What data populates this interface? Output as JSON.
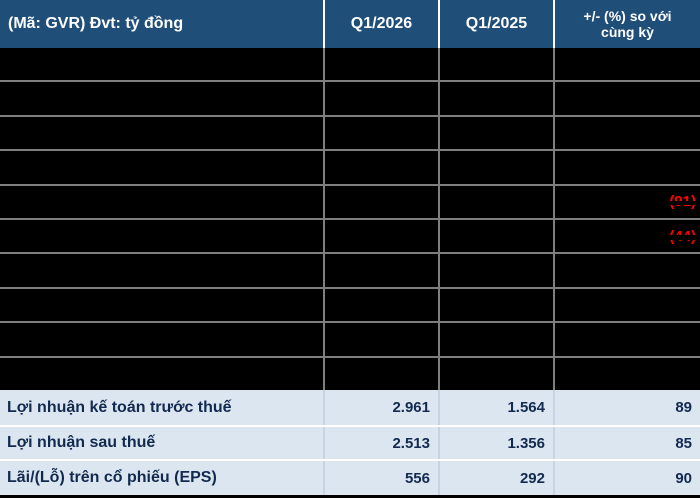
{
  "table": {
    "header": {
      "metric": "(Mã: GVR) Đvt: tỷ đồng",
      "q1_2026": "Q1/2026",
      "q1_2025": "Q1/2025",
      "change": "+/- (%) so với cùng kỳ"
    },
    "redacted_rows": [
      {
        "change": ""
      },
      {
        "change": ""
      },
      {
        "change": ""
      },
      {
        "change": ""
      },
      {
        "change": "(91)"
      },
      {
        "change": "(44)"
      },
      {
        "change": ""
      },
      {
        "change": ""
      },
      {
        "change": ""
      },
      {
        "change": ""
      }
    ],
    "visible_rows": [
      {
        "label": "Lợi nhuận kế toán trước thuế",
        "q1_2026": "2.961",
        "q1_2025": "1.564",
        "change": "89"
      },
      {
        "label": "Lợi nhuận sau thuế",
        "q1_2026": "2.513",
        "q1_2025": "1.356",
        "change": "85"
      },
      {
        "label": "Lãi/(Lỗ) trên cổ phiếu (EPS)",
        "q1_2026": "556",
        "q1_2025": "292",
        "change": "90"
      }
    ],
    "colors": {
      "header_bg": "#1F4E79",
      "header_text": "#FFFFFF",
      "row_bg": "#DCE6F1",
      "row_text": "#132A4F",
      "negative_text": "#FF0000",
      "gridline": "#7F7F7F",
      "redaction": "#000000"
    }
  },
  "chart_data": {
    "type": "table",
    "title": "(Mã: GVR) Đvt: tỷ đồng",
    "columns": [
      "(Mã: GVR) Đvt: tỷ đồng",
      "Q1/2026",
      "Q1/2025",
      "+/- (%) so với cùng kỳ"
    ],
    "rows": [
      [
        "[redacted]",
        "",
        "",
        ""
      ],
      [
        "[redacted]",
        "",
        "",
        ""
      ],
      [
        "[redacted]",
        "",
        "",
        ""
      ],
      [
        "[redacted]",
        "",
        "",
        ""
      ],
      [
        "[redacted]",
        "",
        "",
        "(91)"
      ],
      [
        "[redacted]",
        "",
        "",
        "(44)"
      ],
      [
        "[redacted]",
        "",
        "",
        ""
      ],
      [
        "[redacted]",
        "",
        "",
        ""
      ],
      [
        "[redacted]",
        "",
        "",
        ""
      ],
      [
        "[redacted]",
        "",
        "",
        ""
      ],
      [
        "Lợi nhuận kế toán trước thuế",
        "2.961",
        "1.564",
        "89"
      ],
      [
        "Lợi nhuận sau thuế",
        "2.513",
        "1.356",
        "85"
      ],
      [
        "Lãi/(Lỗ) trên cổ phiếu (EPS)",
        "556",
        "292",
        "90"
      ]
    ]
  }
}
